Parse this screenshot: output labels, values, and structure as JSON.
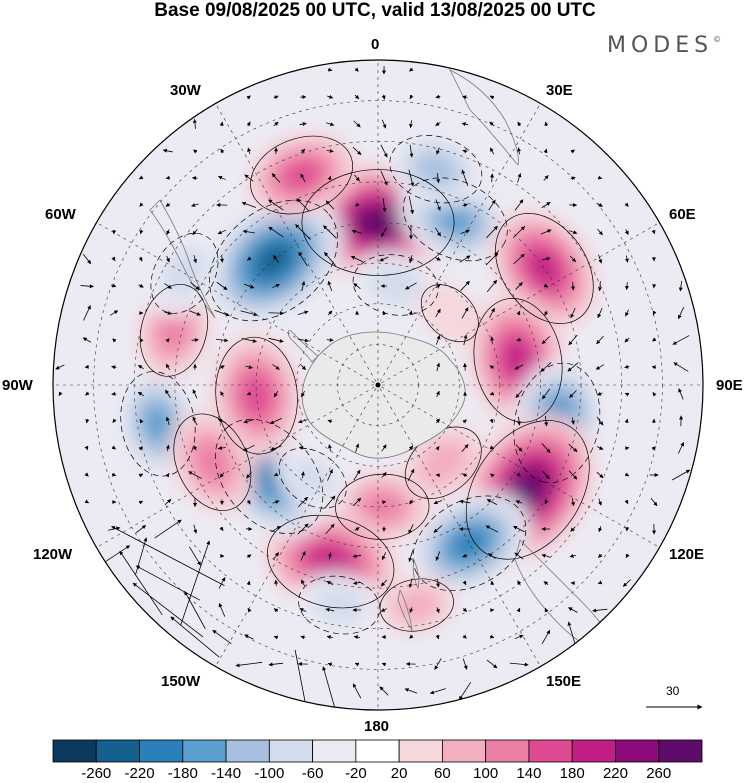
{
  "title": "Base 09/08/2025 00 UTC, valid 13/08/2025 00 UTC",
  "brand": {
    "name": "MODES",
    "mark": "©"
  },
  "longitude_labels": {
    "lon_0": "0",
    "lon_30e": "30E",
    "lon_60e": "60E",
    "lon_90e": "90E",
    "lon_120e": "120E",
    "lon_150e": "150E",
    "lon_180": "180",
    "lon_150w": "150W",
    "lon_120w": "120W",
    "lon_90w": "90W",
    "lon_60w": "60W",
    "lon_30w": "30W"
  },
  "reference_vector": {
    "value": "30"
  },
  "colorbar": {
    "ticks": [
      "-260",
      "-220",
      "-180",
      "-140",
      "-100",
      "-60",
      "-20",
      "20",
      "60",
      "100",
      "140",
      "180",
      "220",
      "260"
    ],
    "colors": [
      "#0b3a5e",
      "#14608f",
      "#2a80b8",
      "#5a9fcf",
      "#a7c0df",
      "#d3dcec",
      "#ecebf4",
      "#ffffff",
      "#f6d7dc",
      "#f3aebf",
      "#ec7fa6",
      "#df4a92",
      "#c11f86",
      "#8c0a79",
      "#5e0a6b"
    ]
  },
  "map": {
    "projection": "south-polar-stereographic",
    "continent_fill": "#eaeaea",
    "anomalies": [
      {
        "lon": 0,
        "lat": -50,
        "value": 260
      },
      {
        "lon": -40,
        "lat": -50,
        "value": -240
      },
      {
        "lon": 25,
        "lat": -45,
        "value": -150
      },
      {
        "lon": 55,
        "lat": -40,
        "value": 180
      },
      {
        "lon": 80,
        "lat": -55,
        "value": 190
      },
      {
        "lon": 102,
        "lat": -45,
        "value": -180
      },
      {
        "lon": 125,
        "lat": -45,
        "value": 260
      },
      {
        "lon": 150,
        "lat": -45,
        "value": -180
      },
      {
        "lon": 178,
        "lat": -60,
        "value": 110
      },
      {
        "lon": -165,
        "lat": -45,
        "value": 200
      },
      {
        "lon": -130,
        "lat": -55,
        "value": -200
      },
      {
        "lon": -95,
        "lat": -60,
        "value": 170
      },
      {
        "lon": -100,
        "lat": -35,
        "value": -140
      },
      {
        "lon": -115,
        "lat": -45,
        "value": 130
      },
      {
        "lon": -75,
        "lat": -38,
        "value": 110
      },
      {
        "lon": -60,
        "lat": -35,
        "value": -90
      },
      {
        "lon": -20,
        "lat": -35,
        "value": 140
      },
      {
        "lon": 15,
        "lat": -35,
        "value": -110
      },
      {
        "lon": 10,
        "lat": -65,
        "value": -90
      },
      {
        "lon": 45,
        "lat": -65,
        "value": 40
      },
      {
        "lon": 140,
        "lat": -65,
        "value": 90
      },
      {
        "lon": -145,
        "lat": -62,
        "value": -60
      },
      {
        "lon": -170,
        "lat": -35,
        "value": -80
      },
      {
        "lon": 170,
        "lat": -35,
        "value": 60
      }
    ]
  }
}
